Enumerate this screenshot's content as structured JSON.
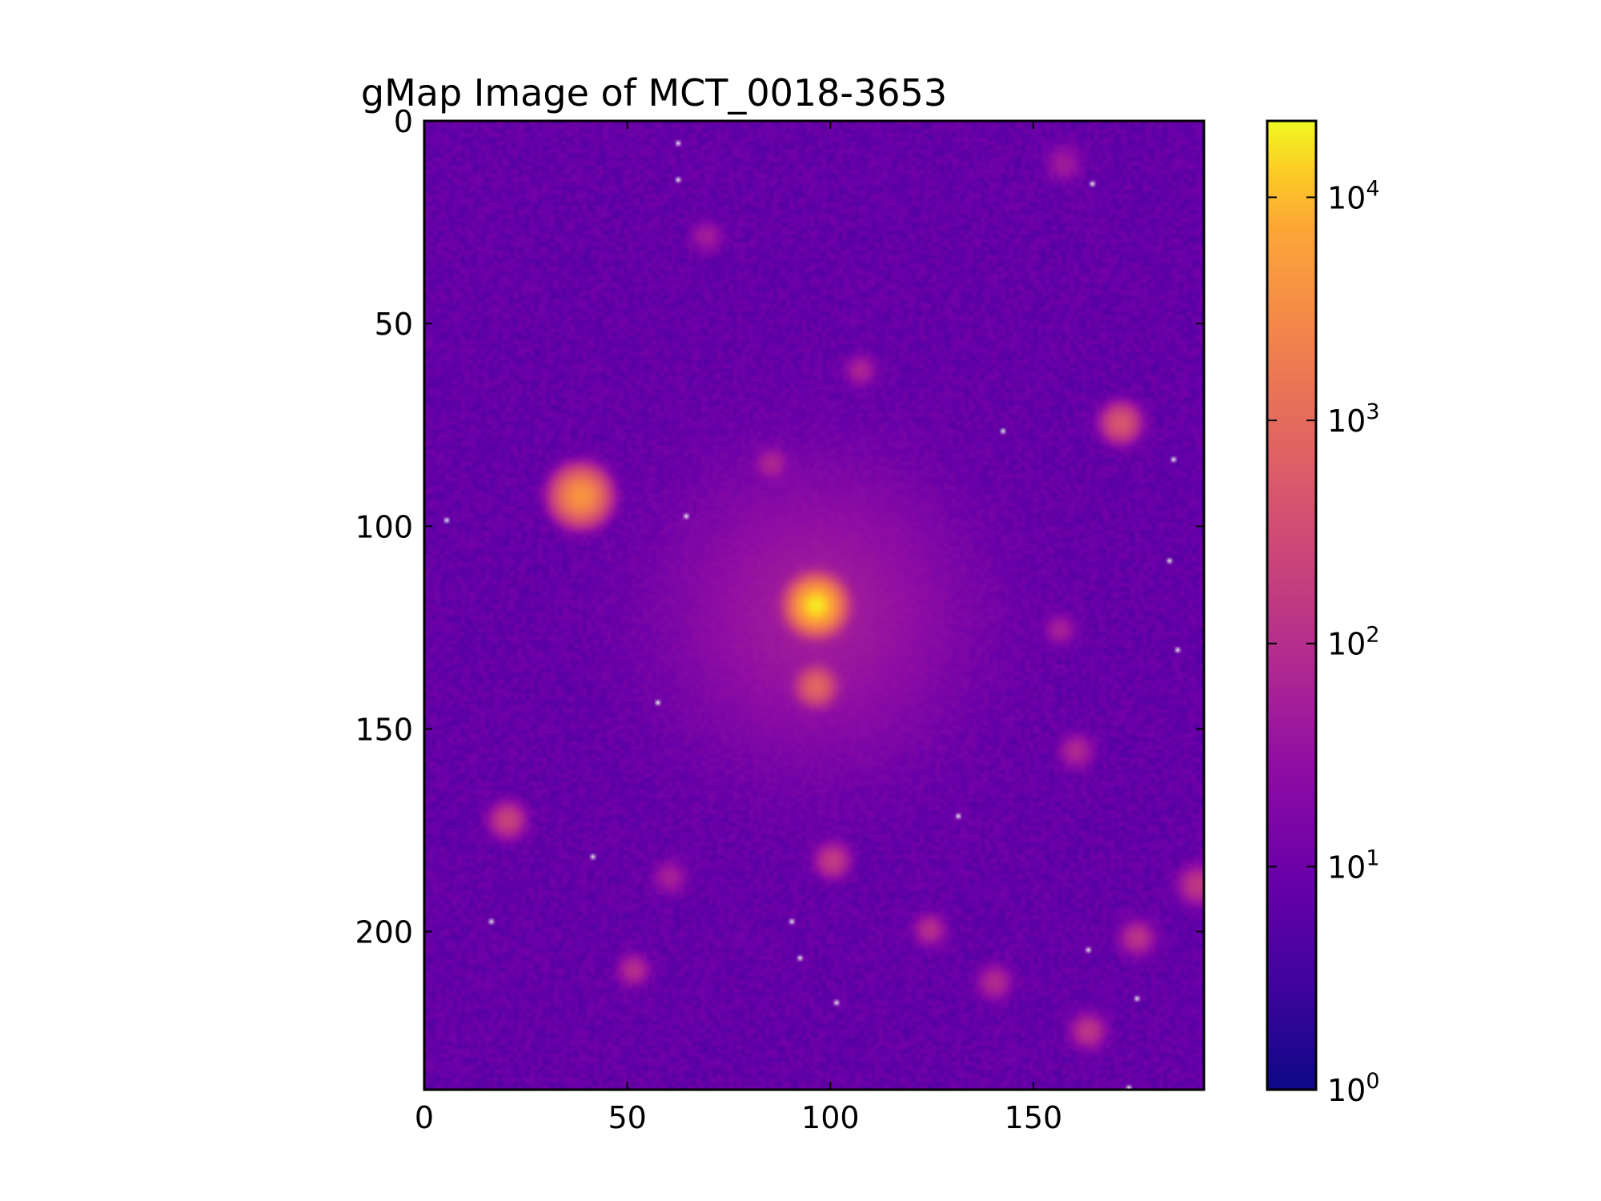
{
  "chart_data": {
    "type": "heatmap",
    "title": "gMap Image of MCT_0018-3653",
    "xlabel": "",
    "ylabel": "",
    "xlim": [
      0,
      192
    ],
    "ylim": [
      239,
      0
    ],
    "x_ticks": [
      0,
      50,
      100,
      150
    ],
    "x_tick_labels": [
      "0",
      "50",
      "100",
      "150"
    ],
    "y_ticks": [
      0,
      50,
      100,
      150,
      200
    ],
    "y_tick_labels": [
      "0",
      "50",
      "100",
      "150",
      "200"
    ],
    "colormap": "plasma",
    "color_scale": "log",
    "colorbar": {
      "range": [
        1,
        22000
      ],
      "ticks": [
        1,
        10,
        100,
        1000,
        10000
      ],
      "tick_labels": [
        {
          "base": "10",
          "exp": "0"
        },
        {
          "base": "10",
          "exp": "1"
        },
        {
          "base": "10",
          "exp": "2"
        },
        {
          "base": "10",
          "exp": "3"
        },
        {
          "base": "10",
          "exp": "4"
        }
      ]
    },
    "background_level": 8,
    "halo": {
      "x": 96,
      "y": 121,
      "radius": 32,
      "peak": 40
    },
    "sources": [
      {
        "x": 96,
        "y": 119,
        "peak": 18000,
        "sigma": 2.6
      },
      {
        "x": 38,
        "y": 92,
        "peak": 4000,
        "sigma": 2.8
      },
      {
        "x": 96,
        "y": 139,
        "peak": 800,
        "sigma": 2.2
      },
      {
        "x": 171,
        "y": 74,
        "peak": 450,
        "sigma": 2.3
      },
      {
        "x": 20,
        "y": 172,
        "peak": 200,
        "sigma": 2.2
      },
      {
        "x": 100,
        "y": 182,
        "peak": 150,
        "sigma": 2.2
      },
      {
        "x": 51,
        "y": 209,
        "peak": 90,
        "sigma": 2.0
      },
      {
        "x": 124,
        "y": 199,
        "peak": 90,
        "sigma": 2.0
      },
      {
        "x": 175,
        "y": 201,
        "peak": 110,
        "sigma": 2.2
      },
      {
        "x": 190,
        "y": 188,
        "peak": 140,
        "sigma": 2.4
      },
      {
        "x": 163,
        "y": 224,
        "peak": 120,
        "sigma": 2.2
      },
      {
        "x": 140,
        "y": 212,
        "peak": 80,
        "sigma": 2.2
      },
      {
        "x": 107,
        "y": 61,
        "peak": 60,
        "sigma": 2.0
      },
      {
        "x": 85,
        "y": 84,
        "peak": 60,
        "sigma": 2.0
      },
      {
        "x": 69,
        "y": 28,
        "peak": 45,
        "sigma": 2.0
      },
      {
        "x": 160,
        "y": 155,
        "peak": 70,
        "sigma": 2.2
      },
      {
        "x": 156,
        "y": 125,
        "peak": 50,
        "sigma": 2.0
      },
      {
        "x": 157,
        "y": 10,
        "peak": 40,
        "sigma": 2.4
      },
      {
        "x": 60,
        "y": 186,
        "peak": 50,
        "sigma": 2.2
      }
    ],
    "bright_pixels": [
      {
        "x": 62,
        "y": 5
      },
      {
        "x": 62,
        "y": 14
      },
      {
        "x": 164,
        "y": 15
      },
      {
        "x": 142,
        "y": 76
      },
      {
        "x": 184,
        "y": 83
      },
      {
        "x": 64,
        "y": 97
      },
      {
        "x": 5,
        "y": 98
      },
      {
        "x": 183,
        "y": 108
      },
      {
        "x": 185,
        "y": 130
      },
      {
        "x": 57,
        "y": 143
      },
      {
        "x": 131,
        "y": 171
      },
      {
        "x": 41,
        "y": 181
      },
      {
        "x": 16,
        "y": 197
      },
      {
        "x": 90,
        "y": 197
      },
      {
        "x": 92,
        "y": 206
      },
      {
        "x": 163,
        "y": 204
      },
      {
        "x": 101,
        "y": 217
      },
      {
        "x": 175,
        "y": 216
      },
      {
        "x": 173,
        "y": 239
      }
    ]
  }
}
